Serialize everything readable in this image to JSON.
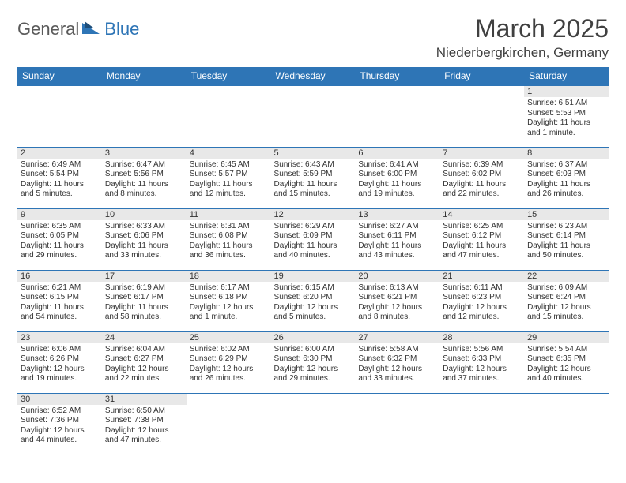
{
  "logo": {
    "word1": "General",
    "word2": "Blue"
  },
  "title": "March 2025",
  "location": "Niederbergkirchen, Germany",
  "colors": {
    "header_bg": "#2e75b6",
    "header_text": "#ffffff",
    "cell_border": "#2e75b6",
    "daynum_bg": "#e8e8e8",
    "body_bg": "#ffffff",
    "text": "#333333"
  },
  "day_headers": [
    "Sunday",
    "Monday",
    "Tuesday",
    "Wednesday",
    "Thursday",
    "Friday",
    "Saturday"
  ],
  "weeks": [
    [
      {
        "n": "",
        "sr": "",
        "ss": "",
        "dl": ""
      },
      {
        "n": "",
        "sr": "",
        "ss": "",
        "dl": ""
      },
      {
        "n": "",
        "sr": "",
        "ss": "",
        "dl": ""
      },
      {
        "n": "",
        "sr": "",
        "ss": "",
        "dl": ""
      },
      {
        "n": "",
        "sr": "",
        "ss": "",
        "dl": ""
      },
      {
        "n": "",
        "sr": "",
        "ss": "",
        "dl": ""
      },
      {
        "n": "1",
        "sr": "Sunrise: 6:51 AM",
        "ss": "Sunset: 5:53 PM",
        "dl": "Daylight: 11 hours and 1 minute."
      }
    ],
    [
      {
        "n": "2",
        "sr": "Sunrise: 6:49 AM",
        "ss": "Sunset: 5:54 PM",
        "dl": "Daylight: 11 hours and 5 minutes."
      },
      {
        "n": "3",
        "sr": "Sunrise: 6:47 AM",
        "ss": "Sunset: 5:56 PM",
        "dl": "Daylight: 11 hours and 8 minutes."
      },
      {
        "n": "4",
        "sr": "Sunrise: 6:45 AM",
        "ss": "Sunset: 5:57 PM",
        "dl": "Daylight: 11 hours and 12 minutes."
      },
      {
        "n": "5",
        "sr": "Sunrise: 6:43 AM",
        "ss": "Sunset: 5:59 PM",
        "dl": "Daylight: 11 hours and 15 minutes."
      },
      {
        "n": "6",
        "sr": "Sunrise: 6:41 AM",
        "ss": "Sunset: 6:00 PM",
        "dl": "Daylight: 11 hours and 19 minutes."
      },
      {
        "n": "7",
        "sr": "Sunrise: 6:39 AM",
        "ss": "Sunset: 6:02 PM",
        "dl": "Daylight: 11 hours and 22 minutes."
      },
      {
        "n": "8",
        "sr": "Sunrise: 6:37 AM",
        "ss": "Sunset: 6:03 PM",
        "dl": "Daylight: 11 hours and 26 minutes."
      }
    ],
    [
      {
        "n": "9",
        "sr": "Sunrise: 6:35 AM",
        "ss": "Sunset: 6:05 PM",
        "dl": "Daylight: 11 hours and 29 minutes."
      },
      {
        "n": "10",
        "sr": "Sunrise: 6:33 AM",
        "ss": "Sunset: 6:06 PM",
        "dl": "Daylight: 11 hours and 33 minutes."
      },
      {
        "n": "11",
        "sr": "Sunrise: 6:31 AM",
        "ss": "Sunset: 6:08 PM",
        "dl": "Daylight: 11 hours and 36 minutes."
      },
      {
        "n": "12",
        "sr": "Sunrise: 6:29 AM",
        "ss": "Sunset: 6:09 PM",
        "dl": "Daylight: 11 hours and 40 minutes."
      },
      {
        "n": "13",
        "sr": "Sunrise: 6:27 AM",
        "ss": "Sunset: 6:11 PM",
        "dl": "Daylight: 11 hours and 43 minutes."
      },
      {
        "n": "14",
        "sr": "Sunrise: 6:25 AM",
        "ss": "Sunset: 6:12 PM",
        "dl": "Daylight: 11 hours and 47 minutes."
      },
      {
        "n": "15",
        "sr": "Sunrise: 6:23 AM",
        "ss": "Sunset: 6:14 PM",
        "dl": "Daylight: 11 hours and 50 minutes."
      }
    ],
    [
      {
        "n": "16",
        "sr": "Sunrise: 6:21 AM",
        "ss": "Sunset: 6:15 PM",
        "dl": "Daylight: 11 hours and 54 minutes."
      },
      {
        "n": "17",
        "sr": "Sunrise: 6:19 AM",
        "ss": "Sunset: 6:17 PM",
        "dl": "Daylight: 11 hours and 58 minutes."
      },
      {
        "n": "18",
        "sr": "Sunrise: 6:17 AM",
        "ss": "Sunset: 6:18 PM",
        "dl": "Daylight: 12 hours and 1 minute."
      },
      {
        "n": "19",
        "sr": "Sunrise: 6:15 AM",
        "ss": "Sunset: 6:20 PM",
        "dl": "Daylight: 12 hours and 5 minutes."
      },
      {
        "n": "20",
        "sr": "Sunrise: 6:13 AM",
        "ss": "Sunset: 6:21 PM",
        "dl": "Daylight: 12 hours and 8 minutes."
      },
      {
        "n": "21",
        "sr": "Sunrise: 6:11 AM",
        "ss": "Sunset: 6:23 PM",
        "dl": "Daylight: 12 hours and 12 minutes."
      },
      {
        "n": "22",
        "sr": "Sunrise: 6:09 AM",
        "ss": "Sunset: 6:24 PM",
        "dl": "Daylight: 12 hours and 15 minutes."
      }
    ],
    [
      {
        "n": "23",
        "sr": "Sunrise: 6:06 AM",
        "ss": "Sunset: 6:26 PM",
        "dl": "Daylight: 12 hours and 19 minutes."
      },
      {
        "n": "24",
        "sr": "Sunrise: 6:04 AM",
        "ss": "Sunset: 6:27 PM",
        "dl": "Daylight: 12 hours and 22 minutes."
      },
      {
        "n": "25",
        "sr": "Sunrise: 6:02 AM",
        "ss": "Sunset: 6:29 PM",
        "dl": "Daylight: 12 hours and 26 minutes."
      },
      {
        "n": "26",
        "sr": "Sunrise: 6:00 AM",
        "ss": "Sunset: 6:30 PM",
        "dl": "Daylight: 12 hours and 29 minutes."
      },
      {
        "n": "27",
        "sr": "Sunrise: 5:58 AM",
        "ss": "Sunset: 6:32 PM",
        "dl": "Daylight: 12 hours and 33 minutes."
      },
      {
        "n": "28",
        "sr": "Sunrise: 5:56 AM",
        "ss": "Sunset: 6:33 PM",
        "dl": "Daylight: 12 hours and 37 minutes."
      },
      {
        "n": "29",
        "sr": "Sunrise: 5:54 AM",
        "ss": "Sunset: 6:35 PM",
        "dl": "Daylight: 12 hours and 40 minutes."
      }
    ],
    [
      {
        "n": "30",
        "sr": "Sunrise: 6:52 AM",
        "ss": "Sunset: 7:36 PM",
        "dl": "Daylight: 12 hours and 44 minutes."
      },
      {
        "n": "31",
        "sr": "Sunrise: 6:50 AM",
        "ss": "Sunset: 7:38 PM",
        "dl": "Daylight: 12 hours and 47 minutes."
      },
      {
        "n": "",
        "sr": "",
        "ss": "",
        "dl": ""
      },
      {
        "n": "",
        "sr": "",
        "ss": "",
        "dl": ""
      },
      {
        "n": "",
        "sr": "",
        "ss": "",
        "dl": ""
      },
      {
        "n": "",
        "sr": "",
        "ss": "",
        "dl": ""
      },
      {
        "n": "",
        "sr": "",
        "ss": "",
        "dl": ""
      }
    ]
  ]
}
